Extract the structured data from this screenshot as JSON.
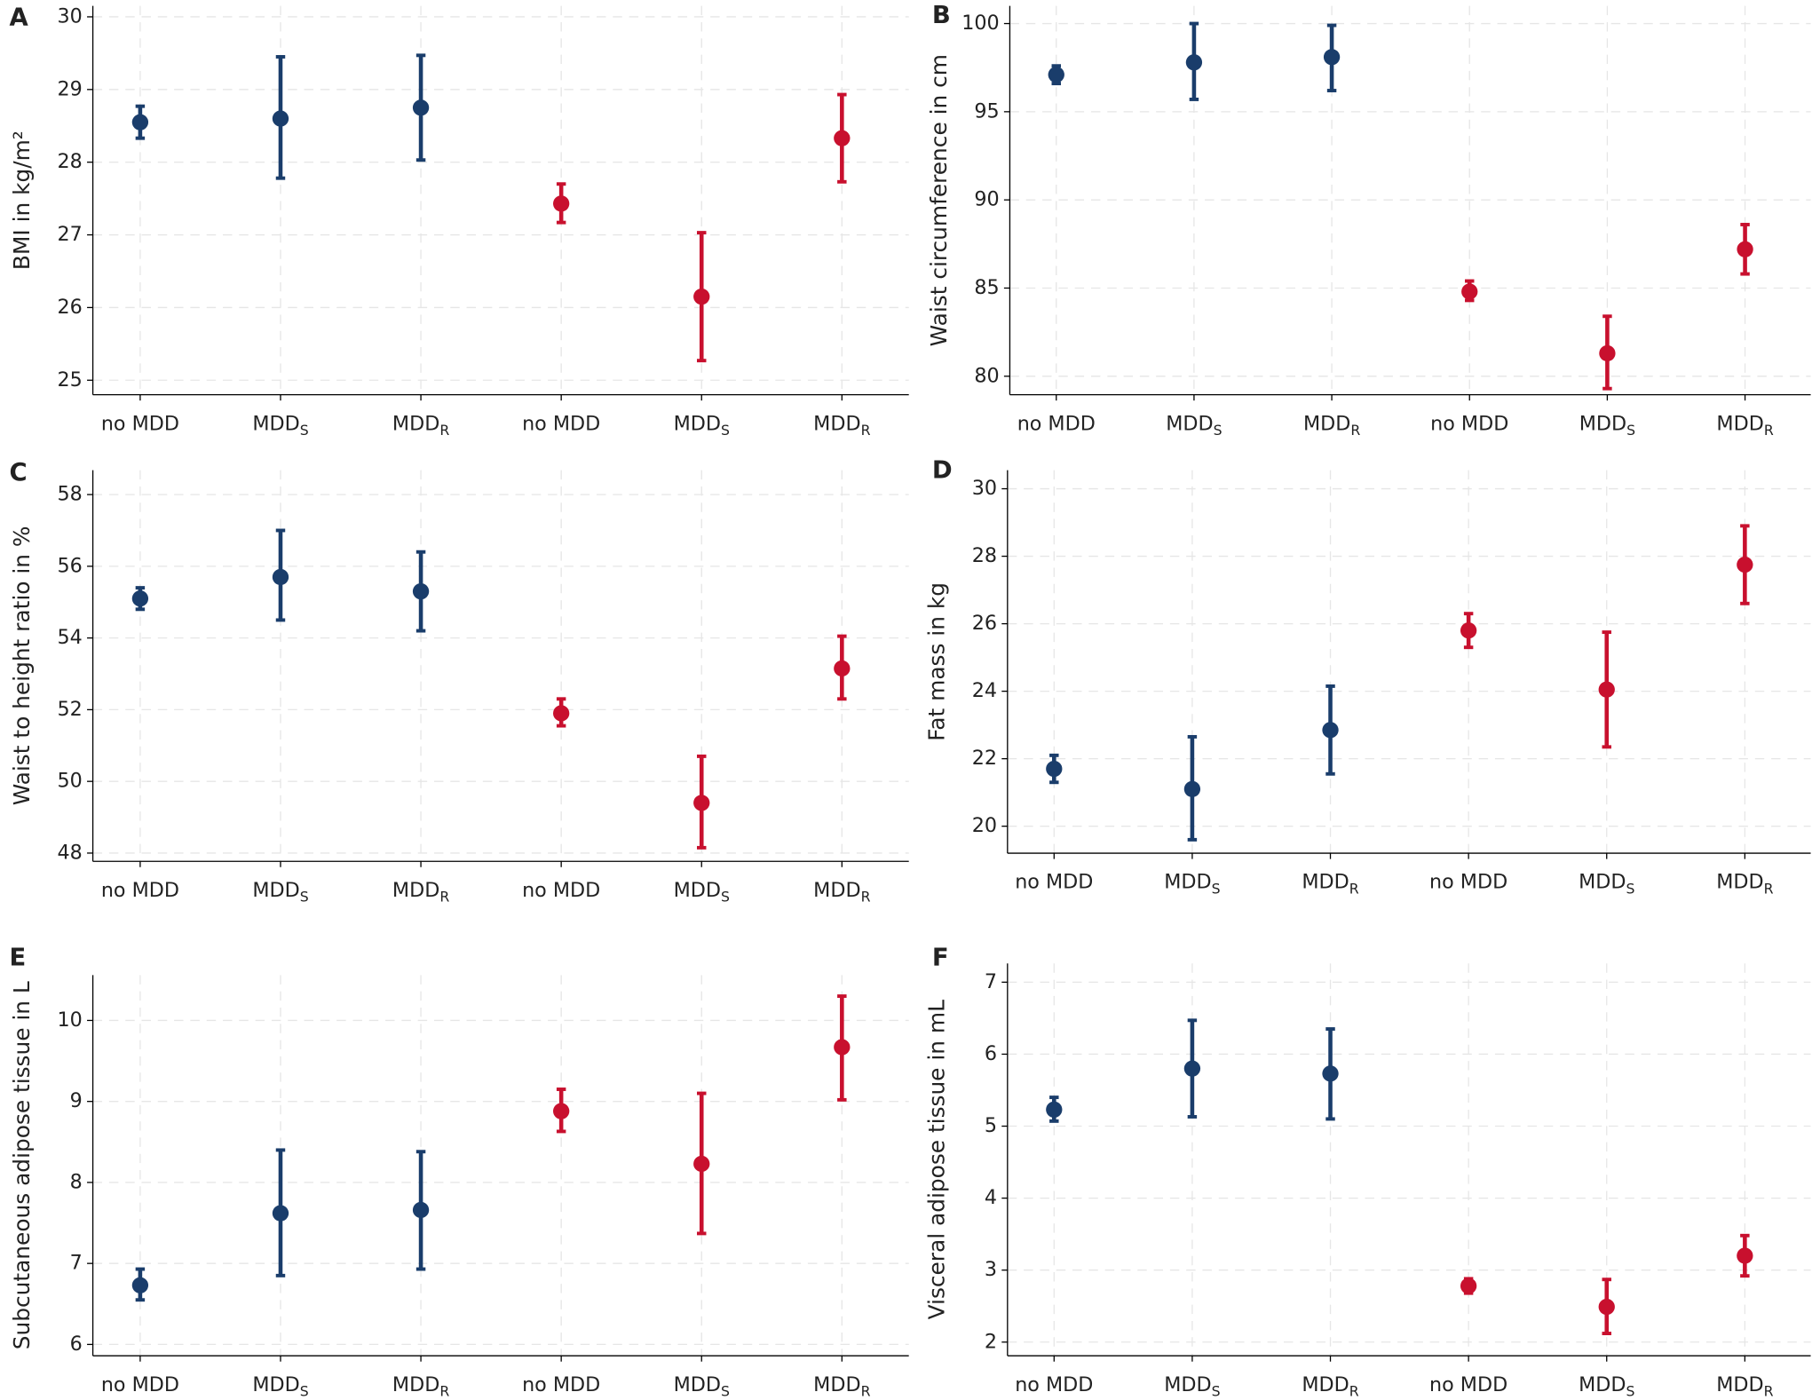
{
  "chart_data": [
    {
      "type": "errorbar",
      "panel_label": "A",
      "y_label": "BMI in kg/m²",
      "categories": [
        "no MDD",
        "MDD",
        "MDD",
        "no MDD",
        "MDD",
        "MDD"
      ],
      "category_subscripts": [
        null,
        "S",
        "R",
        null,
        "S",
        "R"
      ],
      "ylim": [
        24.8,
        30.15
      ],
      "yticks": [
        25,
        26,
        27,
        28,
        29,
        30
      ],
      "grid": true,
      "series": [
        {
          "color": "#1a3d6b",
          "values": [
            28.55,
            28.6,
            28.75,
            null,
            null,
            null
          ],
          "lower": [
            28.33,
            27.78,
            28.03,
            null,
            null,
            null
          ],
          "upper": [
            28.77,
            29.45,
            29.47,
            null,
            null,
            null
          ]
        },
        {
          "color": "#c8102e",
          "values": [
            null,
            null,
            null,
            27.43,
            26.15,
            28.33
          ],
          "lower": [
            null,
            null,
            null,
            27.17,
            25.27,
            27.73
          ],
          "upper": [
            null,
            null,
            null,
            27.7,
            27.03,
            28.93
          ]
        }
      ]
    },
    {
      "type": "errorbar",
      "panel_label": "B",
      "y_label": "Waist circumference in cm",
      "categories": [
        "no MDD",
        "MDD",
        "MDD",
        "no MDD",
        "MDD",
        "MDD"
      ],
      "category_subscripts": [
        null,
        "S",
        "R",
        null,
        "S",
        "R"
      ],
      "ylim": [
        78.95,
        101
      ],
      "yticks": [
        80,
        85,
        90,
        95,
        100
      ],
      "grid": true,
      "series": [
        {
          "color": "#1a3d6b",
          "values": [
            97.1,
            97.8,
            98.1,
            null,
            null,
            null
          ],
          "lower": [
            96.6,
            95.7,
            96.2,
            null,
            null,
            null
          ],
          "upper": [
            97.6,
            100,
            99.9,
            null,
            null,
            null
          ]
        },
        {
          "color": "#c8102e",
          "values": [
            null,
            null,
            null,
            84.8,
            81.3,
            87.2
          ],
          "lower": [
            null,
            null,
            null,
            84.3,
            79.3,
            85.8
          ],
          "upper": [
            null,
            null,
            null,
            85.4,
            83.4,
            88.6
          ]
        }
      ]
    },
    {
      "type": "errorbar",
      "panel_label": "C",
      "y_label": "Waist to height ratio in %",
      "categories": [
        "no MDD",
        "MDD",
        "MDD",
        "no MDD",
        "MDD",
        "MDD"
      ],
      "category_subscripts": [
        null,
        "S",
        "R",
        null,
        "S",
        "R"
      ],
      "ylim": [
        47.77,
        58.68
      ],
      "yticks": [
        48,
        50,
        52,
        54,
        56,
        58
      ],
      "grid": true,
      "series": [
        {
          "color": "#1a3d6b",
          "values": [
            55.1,
            55.7,
            55.3,
            null,
            null,
            null
          ],
          "lower": [
            54.8,
            54.5,
            54.2,
            null,
            null,
            null
          ],
          "upper": [
            55.4,
            57.0,
            56.4,
            null,
            null,
            null
          ]
        },
        {
          "color": "#c8102e",
          "values": [
            null,
            null,
            null,
            51.9,
            49.4,
            53.15
          ],
          "lower": [
            null,
            null,
            null,
            51.55,
            48.15,
            52.3
          ],
          "upper": [
            null,
            null,
            null,
            52.3,
            50.7,
            54.05
          ]
        }
      ]
    },
    {
      "type": "errorbar",
      "panel_label": "D",
      "y_label": "Fat mass in kg",
      "categories": [
        "no MDD",
        "MDD",
        "MDD",
        "no MDD",
        "MDD",
        "MDD"
      ],
      "category_subscripts": [
        null,
        "S",
        "R",
        null,
        "S",
        "R"
      ],
      "ylim": [
        19.2,
        30.55
      ],
      "yticks": [
        20,
        22,
        24,
        26,
        28,
        30
      ],
      "grid": true,
      "series": [
        {
          "color": "#1a3d6b",
          "values": [
            21.7,
            21.1,
            22.85,
            null,
            null,
            null
          ],
          "lower": [
            21.3,
            19.6,
            21.55,
            null,
            null,
            null
          ],
          "upper": [
            22.1,
            22.65,
            24.15,
            null,
            null,
            null
          ]
        },
        {
          "color": "#c8102e",
          "values": [
            null,
            null,
            null,
            25.8,
            24.05,
            27.75
          ],
          "lower": [
            null,
            null,
            null,
            25.3,
            22.35,
            26.6
          ],
          "upper": [
            null,
            null,
            null,
            26.3,
            25.75,
            28.9
          ]
        }
      ]
    },
    {
      "type": "errorbar",
      "panel_label": "E",
      "y_label": "Subcutaneous adipose tissue in L",
      "categories": [
        "no MDD",
        "MDD",
        "MDD",
        "no MDD",
        "MDD",
        "MDD"
      ],
      "category_subscripts": [
        null,
        "S",
        "R",
        null,
        "S",
        "R"
      ],
      "ylim": [
        5.86,
        10.56
      ],
      "yticks": [
        6,
        7,
        8,
        9,
        10
      ],
      "grid": true,
      "series": [
        {
          "color": "#1a3d6b",
          "values": [
            6.73,
            7.62,
            7.66,
            null,
            null,
            null
          ],
          "lower": [
            6.55,
            6.85,
            6.93,
            null,
            null,
            null
          ],
          "upper": [
            6.93,
            8.4,
            8.38,
            null,
            null,
            null
          ]
        },
        {
          "color": "#c8102e",
          "values": [
            null,
            null,
            null,
            8.88,
            8.23,
            9.67
          ],
          "lower": [
            null,
            null,
            null,
            8.63,
            7.37,
            9.02
          ],
          "upper": [
            null,
            null,
            null,
            9.15,
            9.1,
            10.3
          ]
        }
      ]
    },
    {
      "type": "errorbar",
      "panel_label": "F",
      "y_label": "Visceral adipose tissue in mL",
      "categories": [
        "no MDD",
        "MDD",
        "MDD",
        "no MDD",
        "MDD",
        "MDD"
      ],
      "category_subscripts": [
        null,
        "S",
        "R",
        null,
        "S",
        "R"
      ],
      "ylim": [
        1.81,
        7.26
      ],
      "yticks": [
        2,
        3,
        4,
        5,
        6,
        7
      ],
      "grid": true,
      "series": [
        {
          "color": "#1a3d6b",
          "values": [
            5.23,
            5.8,
            5.73,
            null,
            null,
            null
          ],
          "lower": [
            5.07,
            5.13,
            5.1,
            null,
            null,
            null
          ],
          "upper": [
            5.4,
            6.47,
            6.35,
            null,
            null,
            null
          ]
        },
        {
          "color": "#c8102e",
          "values": [
            null,
            null,
            null,
            2.78,
            2.49,
            3.2
          ],
          "lower": [
            null,
            null,
            null,
            2.68,
            2.12,
            2.92
          ],
          "upper": [
            null,
            null,
            null,
            2.88,
            2.87,
            3.48
          ]
        }
      ]
    }
  ]
}
